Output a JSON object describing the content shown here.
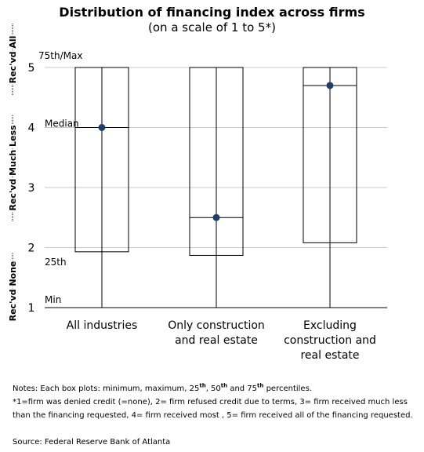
{
  "chart_data": {
    "type": "box",
    "title": "Distribution of financing index across firms",
    "subtitle": "(on a scale of 1 to 5*)",
    "ylim": [
      1,
      5
    ],
    "yticks": [
      1,
      2,
      3,
      4,
      5
    ],
    "grid": true,
    "categories": [
      [
        "All industries"
      ],
      [
        "Only construction",
        "and real estate"
      ],
      [
        "Excluding",
        "construction and",
        "real estate"
      ]
    ],
    "boxes": [
      {
        "min": 1,
        "q1": 1.93,
        "median": 4.0,
        "q3": 5.0,
        "max": 5.0,
        "marker": 4.0
      },
      {
        "min": 1,
        "q1": 1.87,
        "median": 2.5,
        "q3": 5.0,
        "max": 5.0,
        "marker": 2.5
      },
      {
        "min": 1,
        "q1": 2.08,
        "median": 4.7,
        "q3": 5.0,
        "max": 5.0,
        "marker": 4.7
      }
    ],
    "annotations": {
      "max": "75th/Max",
      "median": "Median",
      "q1": "25th",
      "min": "Min"
    },
    "band_labels": [
      "Rec'vd None",
      "Rec'vd Much Less",
      "Rec'vd All"
    ],
    "colors": {
      "marker": "#1f3f66",
      "box": "#000000",
      "grid": "#c8c8c8"
    }
  },
  "notes": {
    "line1_pre": "Notes: Each box plots: minimum,  maximum,  25",
    "sup1": "th",
    "line1_mid": ", 50",
    "sup2": "th",
    "line1_mid2": " and 75",
    "sup3": "th",
    "line1_post": " percentiles.",
    "line2": "*1=firm was denied  credit (=none),  2= firm refused credit due to terms, 3= firm received much less than the  financing requested, 4= firm received most , 5= firm received all of the financing requested."
  },
  "source": "Source: Federal Reserve Bank of Atlanta"
}
